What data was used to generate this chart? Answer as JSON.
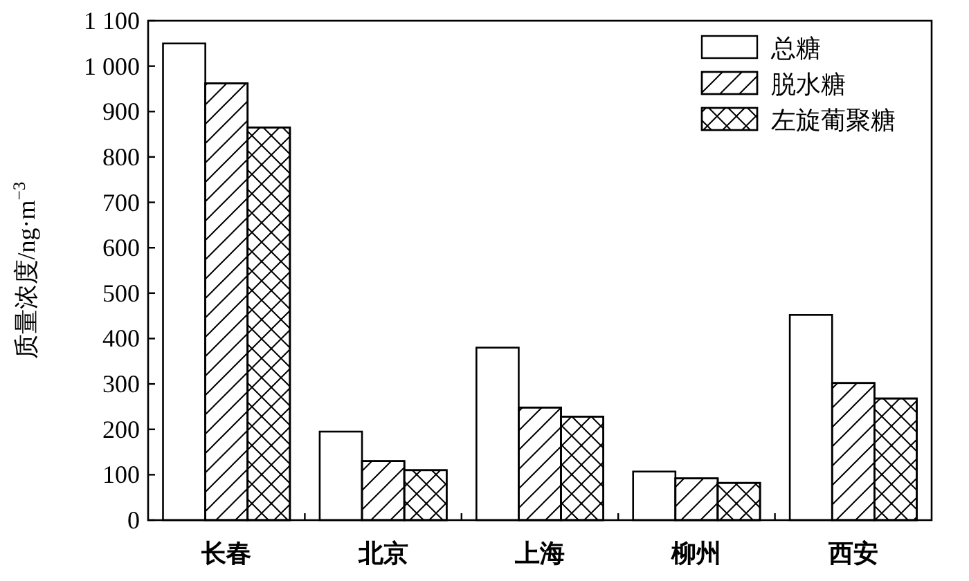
{
  "chart_data": {
    "type": "bar",
    "xlabel": null,
    "ylabel": "质量浓度/ng·m$^{−3}$",
    "categories": [
      "长春",
      "北京",
      "上海",
      "柳州",
      "西安"
    ],
    "series": [
      {
        "name": "总糖",
        "color": "#ffffff",
        "values": [
          1050,
          195,
          380,
          107,
          452
        ]
      },
      {
        "name": "脱水糖",
        "color": "#ffffff",
        "values": [
          962,
          130,
          248,
          92,
          302
        ]
      },
      {
        "name": "左旋葡聚糖",
        "color": "#ffffff",
        "values": [
          865,
          110,
          228,
          82,
          268
        ]
      }
    ],
    "ylim": [
      0,
      1100
    ],
    "yticks": [
      0,
      100,
      200,
      300,
      400,
      500,
      600,
      700,
      800,
      900,
      {
        "value": 1000,
        "label": "1 000"
      },
      {
        "value": 1100,
        "label": "1 100"
      }
    ],
    "grid": false,
    "legend": "top right"
  }
}
